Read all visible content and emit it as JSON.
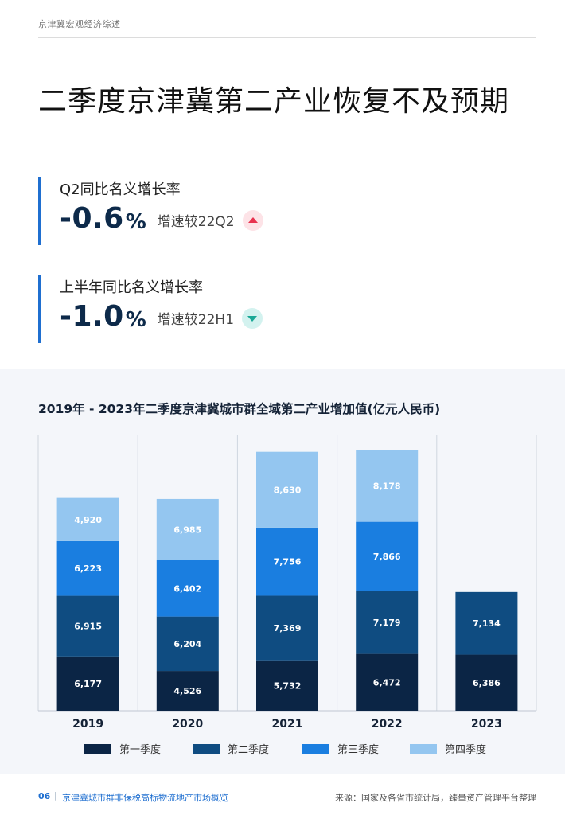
{
  "header": {
    "section_label": "京津冀宏观经济综述"
  },
  "page_title": "二季度京津冀第二产业恢复不及预期",
  "kpis": [
    {
      "label": "Q2同比名义增长率",
      "value": "-0.6",
      "unit": "%",
      "compare": "增速较22Q2",
      "direction": "up",
      "badge_color": "#e8324f"
    },
    {
      "label": "上半年同比名义增长率",
      "value": "-1.0",
      "unit": "%",
      "compare": "增速较22H1",
      "direction": "down",
      "badge_color": "#1aa896"
    }
  ],
  "chart_data": {
    "type": "bar",
    "stacked": true,
    "title": "2019年 - 2023年二季度京津冀城市群全域第二产业增加值(亿元人民币)",
    "categories": [
      "2019",
      "2020",
      "2021",
      "2022",
      "2023"
    ],
    "series": [
      {
        "name": "第一季度",
        "color": "#0b2545",
        "values": [
          6177,
          4526,
          5732,
          6472,
          6386
        ],
        "labels": [
          "6,177",
          "4,526",
          "5,732",
          "6,472",
          "6,386"
        ]
      },
      {
        "name": "第二季度",
        "color": "#0f4c81",
        "values": [
          6915,
          6204,
          7369,
          7179,
          7134
        ],
        "labels": [
          "6,915",
          "6,204",
          "7,369",
          "7,179",
          "7,134"
        ]
      },
      {
        "name": "第三季度",
        "color": "#1a7ee0",
        "values": [
          6223,
          6402,
          7756,
          7866,
          null
        ],
        "labels": [
          "6,223",
          "6,402",
          "7,756",
          "7,866",
          ""
        ]
      },
      {
        "name": "第四季度",
        "color": "#94c6f0",
        "values": [
          4920,
          6985,
          8630,
          8178,
          null
        ],
        "labels": [
          "4,920",
          "6,985",
          "8,630",
          "8,178",
          ""
        ]
      }
    ],
    "legend_position": "bottom",
    "grid": false
  },
  "footer": {
    "page_number": "06",
    "separator": "|",
    "report_title": "京津冀城市群非保税高标物流地产市场概览",
    "source": "来源：国家及各省市统计局，臻量资产管理平台整理"
  }
}
